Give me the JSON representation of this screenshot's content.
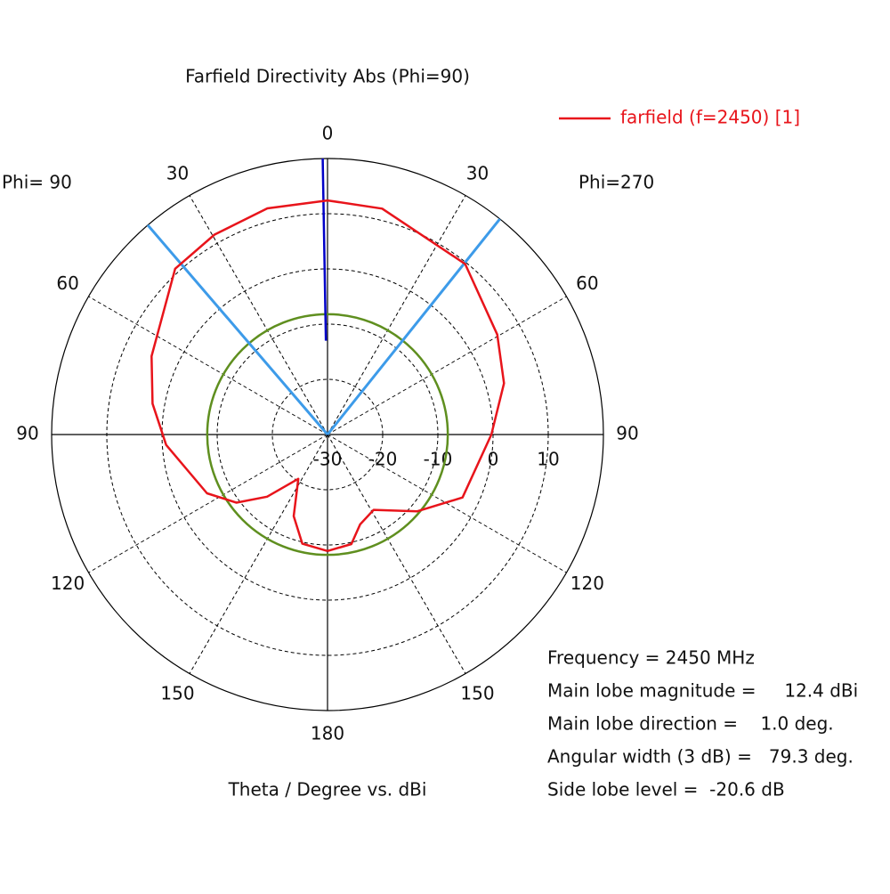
{
  "chart_data": {
    "type": "polar",
    "title": "Farfield Directivity Abs (Phi=90)",
    "left_label": "Phi= 90",
    "right_label": "Phi=270",
    "xlabel": "Theta / Degree vs. dBi",
    "rlim": [
      -30,
      20
    ],
    "rticks": [
      -30,
      -20,
      -10,
      0,
      10
    ],
    "thetaticks": [
      {
        "value": -150,
        "label": "150"
      },
      {
        "value": -120,
        "label": "120"
      },
      {
        "value": -90,
        "label": "90"
      },
      {
        "value": -60,
        "label": "60"
      },
      {
        "value": -30,
        "label": "30"
      },
      0,
      30,
      60,
      90,
      120,
      150,
      180
    ],
    "series": [
      {
        "name": "farfield (f=2450) [1]",
        "color": "#e8141b",
        "theta": [
          -180,
          -167,
          -157.5,
          -146.6,
          -135.8,
          -126.8,
          -116,
          -93.7,
          -80,
          -66,
          -42.6,
          -29.5,
          -14.9,
          0,
          13.6,
          38.9,
          59.5,
          73.8,
          90,
          115,
          130.5,
          148.5,
          160,
          167.7,
          180
        ],
        "values": [
          -8.9,
          -9.7,
          -14,
          -20.4,
          -14.3,
          -9.4,
          -5.7,
          -0.7,
          2.2,
          4.9,
          10.8,
          11.6,
          12.4,
          12.4,
          12.1,
          9.7,
          5.7,
          3.3,
          -0.3,
          -3,
          -8.6,
          -14,
          -12.7,
          -9.7,
          -8.9
        ]
      }
    ],
    "reference_circles": [
      {
        "value": -8.2,
        "color": "#5f8f1f"
      }
    ],
    "markers": [
      {
        "angle": -1.0,
        "color": "#0000c8",
        "kind": "main-lobe"
      },
      {
        "angle": -40.65,
        "color": "#3d9be9",
        "kind": "beam-edge"
      },
      {
        "angle": 38.65,
        "color": "#3d9be9",
        "kind": "beam-edge"
      }
    ],
    "annotations": [
      "Frequency = 2450 MHz",
      "Main lobe magnitude =     12.4 dBi",
      "Main lobe direction =    1.0 deg.",
      "Angular width (3 dB) =   79.3 deg.",
      "Side lobe level =  -20.6 dB"
    ]
  }
}
